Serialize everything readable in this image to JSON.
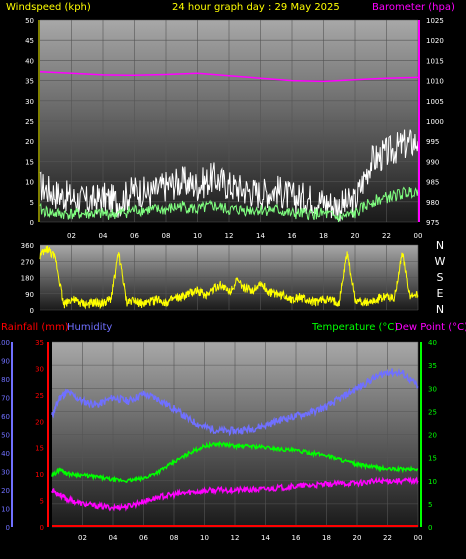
{
  "header": {
    "left_label": "Windspeed (kph)",
    "center_label": "24 hour graph day : 29 May 2025",
    "right_label": "Barometer (hpa)"
  },
  "bottom_header": {
    "rain_label": "Rainfall (mm)",
    "humidity_label": "Humidity",
    "temp_label": "Temperature (°C)",
    "dew_label": "Dew Point (°C)"
  },
  "compass": [
    "N",
    "W",
    "S",
    "E",
    "N"
  ],
  "colors": {
    "wind_gust": "#ffffff",
    "wind_avg": "#80ff80",
    "barometer": "#ff00ff",
    "wind_dir": "#ffff00",
    "humidity": "#7070ff",
    "temperature": "#00ff00",
    "dewpoint": "#ff00ff",
    "rain": "#ff0000",
    "axis_yellow": "#ffff00",
    "axis_magenta": "#ff00ff",
    "axis_red": "#ff0000",
    "axis_blue": "#7070ff",
    "axis_green": "#00ff00"
  },
  "chart_data": [
    {
      "type": "line",
      "name": "wind-barometer",
      "x_ticks": [
        "02",
        "04",
        "06",
        "08",
        "10",
        "12",
        "14",
        "16",
        "18",
        "20",
        "22",
        "00"
      ],
      "y_left_ticks": [
        0,
        5,
        10,
        15,
        20,
        25,
        30,
        35,
        40,
        45,
        50
      ],
      "y_left_range": [
        0,
        50
      ],
      "y_right_ticks": [
        975,
        980,
        985,
        990,
        995,
        1000,
        1005,
        1010,
        1015,
        1020,
        1025
      ],
      "y_right_range": [
        975,
        1025
      ],
      "series": [
        {
          "key": "gust",
          "x": [
            0,
            1,
            2,
            3,
            4,
            5,
            6,
            7,
            8,
            9,
            10,
            11,
            12,
            13,
            14,
            15,
            16,
            17,
            18,
            19,
            20,
            21,
            22,
            23,
            24
          ],
          "values": [
            9,
            7,
            6,
            5,
            6,
            5,
            8,
            7,
            9,
            10,
            9,
            11,
            9,
            8,
            7,
            8,
            6,
            6,
            5,
            4,
            5,
            15,
            17,
            19,
            20
          ]
        },
        {
          "key": "avg",
          "x": [
            0,
            1,
            2,
            3,
            4,
            5,
            6,
            7,
            8,
            9,
            10,
            11,
            12,
            13,
            14,
            15,
            16,
            17,
            18,
            19,
            20,
            21,
            22,
            23,
            24
          ],
          "values": [
            3,
            2,
            2,
            2,
            2,
            2,
            3,
            3,
            3,
            4,
            3,
            4,
            3,
            3,
            3,
            3,
            2,
            2,
            2,
            1,
            2,
            5,
            6,
            7,
            8
          ]
        },
        {
          "key": "baro",
          "x": [
            0,
            2,
            4,
            6,
            8,
            10,
            12,
            14,
            16,
            18,
            20,
            22,
            24
          ],
          "values": [
            1012.2,
            1011.8,
            1011.4,
            1011.3,
            1011.5,
            1011.8,
            1011.2,
            1010.6,
            1010.0,
            1009.8,
            1010.2,
            1010.6,
            1010.8
          ]
        }
      ]
    },
    {
      "type": "scatter",
      "name": "wind-direction",
      "x_ticks": [
        "02",
        "04",
        "06",
        "08",
        "10",
        "12",
        "14",
        "16",
        "18",
        "20",
        "22",
        "00"
      ],
      "y_ticks": [
        0,
        90,
        180,
        270,
        360
      ],
      "y_range": [
        0,
        360
      ],
      "series": [
        {
          "key": "dir",
          "x": [
            0,
            0.5,
            1,
            1.5,
            2,
            2.5,
            3,
            3.5,
            4,
            4.5,
            5,
            5.5,
            6,
            6.5,
            7,
            7.5,
            8,
            8.5,
            9,
            9.5,
            10,
            10.5,
            11,
            11.5,
            12,
            12.5,
            13,
            13.5,
            14,
            14.5,
            15,
            15.5,
            16,
            16.5,
            17,
            17.5,
            18,
            18.5,
            19,
            19.5,
            20,
            20.5,
            21,
            21.5,
            22,
            22.5,
            23,
            23.5,
            24
          ],
          "values": [
            300,
            340,
            280,
            30,
            60,
            40,
            30,
            40,
            35,
            60,
            320,
            40,
            60,
            30,
            45,
            60,
            40,
            60,
            70,
            90,
            110,
            80,
            120,
            140,
            100,
            160,
            120,
            110,
            150,
            100,
            90,
            80,
            60,
            70,
            50,
            40,
            60,
            50,
            40,
            320,
            60,
            40,
            50,
            60,
            80,
            60,
            320,
            70,
            80
          ]
        }
      ]
    },
    {
      "type": "line",
      "name": "temp-humidity-rain",
      "x_ticks": [
        "02",
        "04",
        "06",
        "08",
        "10",
        "12",
        "14",
        "16",
        "18",
        "20",
        "22",
        "00"
      ],
      "humidity_ticks": [
        0,
        10,
        20,
        30,
        40,
        50,
        60,
        70,
        80,
        90,
        100
      ],
      "humidity_range": [
        0,
        100
      ],
      "rain_ticks": [
        0,
        5,
        10,
        15,
        20,
        25,
        30,
        35
      ],
      "rain_range": [
        0,
        35
      ],
      "temp_ticks": [
        0,
        5,
        10,
        15,
        20,
        25,
        30,
        35,
        40
      ],
      "temp_range": [
        0,
        40
      ],
      "series": [
        {
          "key": "humidity",
          "x": [
            0,
            0.5,
            1,
            2,
            3,
            4,
            5,
            6,
            7,
            8,
            9,
            10,
            11,
            12,
            13,
            14,
            15,
            16,
            17,
            18,
            19,
            20,
            21,
            22,
            23,
            24
          ],
          "values": [
            60,
            70,
            73,
            68,
            66,
            70,
            68,
            72,
            69,
            64,
            58,
            54,
            52,
            52,
            53,
            55,
            58,
            60,
            62,
            65,
            70,
            75,
            80,
            84,
            83,
            76
          ]
        },
        {
          "key": "temperature",
          "x": [
            0,
            0.5,
            1,
            2,
            3,
            4,
            5,
            6,
            7,
            8,
            9,
            10,
            11,
            12,
            13,
            14,
            15,
            16,
            17,
            18,
            19,
            20,
            21,
            22,
            23,
            24
          ],
          "values": [
            11,
            12.5,
            11.5,
            11.2,
            10.8,
            10.2,
            10,
            10.5,
            12,
            14,
            16,
            17.5,
            18,
            17.5,
            17.5,
            17.2,
            16.8,
            16.5,
            16,
            15.5,
            14.5,
            13.5,
            13,
            12.5,
            12.5,
            12.5
          ]
        },
        {
          "key": "dewpoint",
          "x": [
            0,
            0.5,
            1,
            2,
            3,
            4,
            5,
            6,
            7,
            8,
            9,
            10,
            11,
            12,
            13,
            14,
            15,
            16,
            17,
            18,
            19,
            20,
            21,
            22,
            23,
            24
          ],
          "values": [
            8,
            7,
            6,
            5,
            4.5,
            4.2,
            4.5,
            5.5,
            6.5,
            7,
            7.5,
            7.8,
            8,
            8,
            8,
            8.2,
            8.5,
            8.8,
            9,
            9.2,
            9.4,
            9.5,
            9.8,
            10,
            10,
            10
          ]
        },
        {
          "key": "rain",
          "x": [
            0,
            24
          ],
          "values": [
            0,
            0
          ]
        }
      ]
    }
  ]
}
